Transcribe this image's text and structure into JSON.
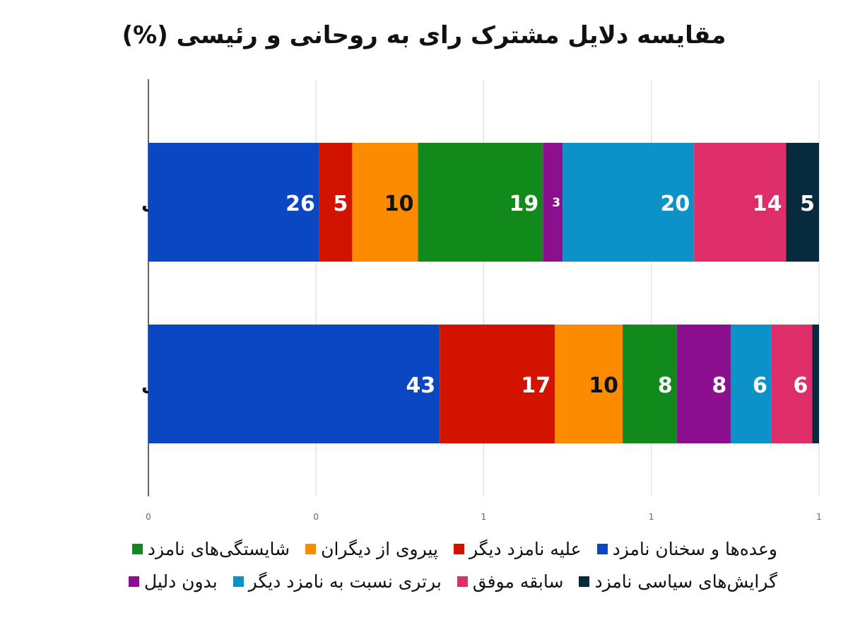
{
  "chart_data": {
    "type": "bar",
    "orientation": "horizontal",
    "stacked": true,
    "title": "مقایسه دلایل مشترک رای به روحانی و رئیسی (%)",
    "categories": [
      "رای به روحانی",
      "رای به رئیسی"
    ],
    "x_tick_labels": [
      "0",
      "0",
      "1",
      "1",
      "1"
    ],
    "grid": true,
    "legend_position": "bottom",
    "series": [
      {
        "name": "وعده‌ها و سخنان نامزد",
        "color": "#0b47c2",
        "values": [
          26,
          43
        ],
        "label_color": "#ffffff"
      },
      {
        "name": "علیه نامزد دیگر",
        "color": "#d11300",
        "values": [
          5,
          17
        ],
        "label_color": "#ffffff"
      },
      {
        "name": "پیروی از دیگران",
        "color": "#fb8c00",
        "values": [
          10,
          10
        ],
        "label_color": "#111111"
      },
      {
        "name": "شایستگی‌های نامزد",
        "color": "#128a1b",
        "values": [
          19,
          8
        ],
        "label_color": "#ffffff"
      },
      {
        "name": "بدون دلیل",
        "color": "#8b0f8f",
        "values": [
          3,
          8
        ],
        "label_color": "#ffffff"
      },
      {
        "name": "برتری نسبت به نامزد دیگر",
        "color": "#0c92c6",
        "values": [
          20,
          6
        ],
        "label_color": "#ffffff"
      },
      {
        "name": "سابقه موفق",
        "color": "#dd2e6a",
        "values": [
          14,
          6
        ],
        "label_color": "#ffffff"
      },
      {
        "name": "گرایش‌های سیاسی نامزد",
        "color": "#062a3e",
        "values": [
          5,
          1
        ],
        "label_color": "#ffffff"
      }
    ],
    "data_labels": [
      [
        "26",
        "5",
        "10",
        "19",
        "3",
        "20",
        "14",
        "5"
      ],
      [
        "43",
        "17",
        "10",
        "8",
        "8",
        "6",
        "6",
        ""
      ]
    ]
  },
  "legend_rows": [
    [
      0,
      1,
      2,
      3
    ],
    [
      7,
      6,
      5,
      4
    ]
  ]
}
